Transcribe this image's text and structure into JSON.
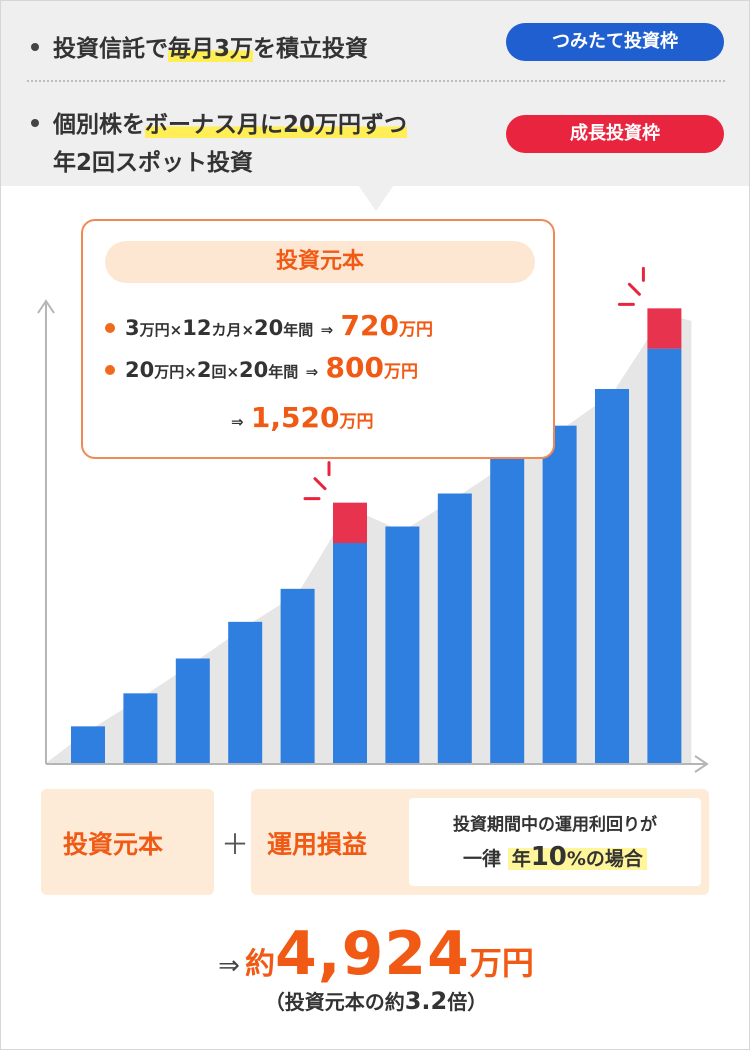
{
  "plans": [
    {
      "text_plain": "投資信託で",
      "text_hl": "毎月3万",
      "text_tail": "を積立投資",
      "badge": "つみたて投資枠",
      "badge_color": "#1f5fcf"
    },
    {
      "text_plain": "個別株を",
      "text_hl": "ボーナス月に20万円ずつ",
      "line2": "年2回スポット投資",
      "badge": "成長投資枠",
      "badge_color": "#e8243f"
    }
  ],
  "callout": {
    "title": "投資元本",
    "rows": [
      {
        "a": "3",
        "a_unit": "万円",
        "x1": "×",
        "b": "12",
        "b_unit": "カ月",
        "x2": "×",
        "c": "20",
        "c_unit": "年間",
        "arrow": "⇒",
        "result": "720",
        "result_unit": "万円"
      },
      {
        "a": "20",
        "a_unit": "万円",
        "x1": "×",
        "b": "2",
        "b_unit": "回",
        "x2": "×",
        "c": "20",
        "c_unit": "年間",
        "arrow": "⇒",
        "result": "800",
        "result_unit": "万円"
      }
    ],
    "total_arrow": "⇒",
    "total": "1,520",
    "total_unit": "万円"
  },
  "chart_data": {
    "type": "bar",
    "values": [
      1.0,
      1.9,
      2.85,
      3.85,
      4.75,
      6.0,
      6.45,
      7.35,
      8.3,
      9.2,
      10.2,
      11.3
    ],
    "bonus_highlight": [
      false,
      false,
      false,
      false,
      false,
      true,
      false,
      false,
      false,
      false,
      false,
      true
    ],
    "highlight_extra": [
      0,
      0,
      0,
      0,
      0,
      1.1,
      0,
      0,
      0,
      0,
      0,
      1.1
    ],
    "ylim": [
      0,
      12.6
    ],
    "colors": {
      "bar": "#2f7fe0",
      "highlight": "#e8334e",
      "area": "#e6e6e6",
      "axis": "#b5b5b5",
      "spark": "#e8243f"
    }
  },
  "formula": {
    "principal": "投資元本",
    "plus": "＋",
    "gain": "運用損益",
    "note_line1": "投資期間中の運用利回りが",
    "note_pre": "一律",
    "note_hl_a": "年",
    "note_hl_num": "10",
    "note_hl_b": "%の場合"
  },
  "result": {
    "arrow": "⇒",
    "pre": "約",
    "amount": "4,924",
    "unit": "万円",
    "sub_open": "（投資元本の約",
    "sub_num": "3.2",
    "sub_close": "倍）"
  }
}
